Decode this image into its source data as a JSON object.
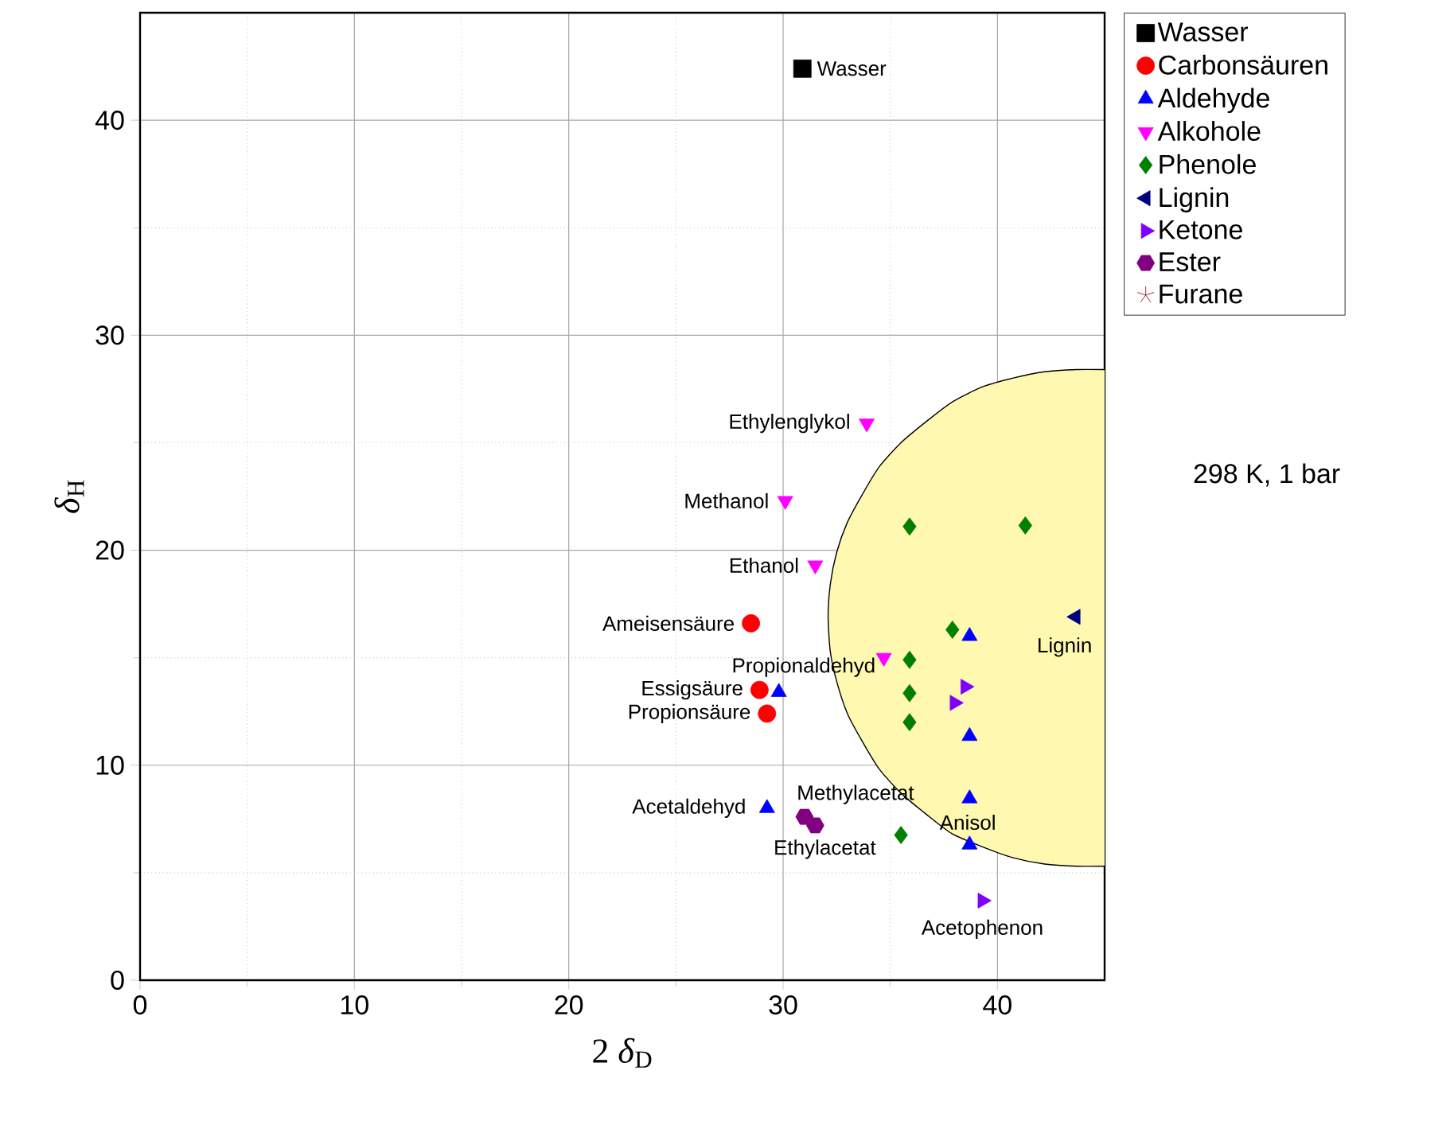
{
  "chart_data": {
    "type": "scatter",
    "xlabel": "2 *δ*$_{D}$",
    "ylabel": "*δ*$_{H}$",
    "xlim": [
      0,
      45
    ],
    "ylim": [
      0,
      45
    ],
    "xticks": [
      0,
      10,
      20,
      30,
      40
    ],
    "yticks": [
      0,
      10,
      20,
      30,
      40
    ],
    "grid": true,
    "legend": "right",
    "series": [
      {
        "type": "area",
        "color": "#fff8b0",
        "x": [
          45.0,
          43.7,
          42.2,
          40.7,
          39.3,
          37.9,
          36.7,
          35.5,
          34.5,
          33.7,
          33.0,
          32.5,
          32.2,
          32.1,
          32.2,
          32.5,
          33.0,
          33.7,
          34.5,
          35.5,
          36.7,
          37.9,
          39.3,
          40.7,
          42.2,
          43.7,
          45.0
        ],
        "values": [
          28.4,
          28.4,
          28.3,
          28.0,
          27.6,
          26.9,
          26.0,
          25.0,
          23.9,
          22.6,
          21.3,
          19.9,
          18.4,
          16.9,
          15.3,
          13.9,
          12.4,
          11.1,
          9.8,
          8.7,
          7.7,
          6.8,
          6.2,
          5.7,
          5.4,
          5.3,
          5.3
        ]
      },
      {
        "name": "Wasser",
        "color": "#000000",
        "marker": "square",
        "x": [
          30.9
        ],
        "values": [
          42.4
        ]
      },
      {
        "name": "Carbonsäuren",
        "color": "#ff0000",
        "marker": "circle",
        "x": [
          28.5,
          28.9,
          29.25
        ],
        "values": [
          16.6,
          13.5,
          12.4
        ]
      },
      {
        "name": "Aldehyde",
        "color": "#0000ff",
        "marker": "triangle",
        "x": [
          29.8,
          29.25,
          38.7,
          38.7,
          38.7,
          38.7
        ],
        "values": [
          13.4,
          8.0,
          16.0,
          11.35,
          8.45,
          6.3
        ]
      },
      {
        "name": "Alkohole",
        "color": "#ff00ff",
        "marker": "triangle_down",
        "x": [
          33.9,
          30.1,
          31.5,
          34.7
        ],
        "values": [
          25.9,
          22.3,
          19.3,
          15.0
        ]
      },
      {
        "name": "Phenole",
        "color": "#008000",
        "marker": "diamond",
        "x": [
          35.9,
          41.3,
          37.9,
          35.9,
          35.9,
          35.9,
          35.5
        ],
        "values": [
          21.1,
          21.15,
          16.3,
          14.9,
          13.35,
          12.0,
          6.75
        ]
      },
      {
        "name": "Lignin",
        "color": "#000080",
        "marker": "triangle_left",
        "x": [
          43.65
        ],
        "values": [
          16.9
        ]
      },
      {
        "name": "Ketone",
        "color": "#8000ff",
        "marker": "triangle_right",
        "x": [
          38.5,
          38.0,
          39.3
        ],
        "values": [
          13.65,
          12.9,
          3.7
        ]
      },
      {
        "name": "Ester",
        "color": "#800080",
        "x": [
          31.0,
          31.5
        ],
        "values": [
          7.6,
          7.2
        ]
      },
      {
        "name": "Furane",
        "color": "#800000",
        "marker": "star"
      }
    ],
    "annotations": [
      "298 K, 1 bar",
      {
        "text": "Wasser",
        "x": 30.9,
        "y": 42.4
      },
      {
        "text": "Ethylenglykol",
        "x": 33.9,
        "y": 25.9
      },
      {
        "text": "Methanol",
        "x": 30.1,
        "y": 22.3
      },
      {
        "text": "Ethanol",
        "x": 31.5,
        "y": 19.3
      },
      {
        "text": "Ameisensäure",
        "x": 28.5,
        "y": 16.6
      },
      {
        "text": "Propionaldehyd",
        "x": 34.7,
        "y": 15.0
      },
      {
        "text": "Essigsäure",
        "x": 28.9,
        "y": 13.5
      },
      {
        "text": "Propionsäure",
        "x": 29.25,
        "y": 12.4
      },
      {
        "text": "Acetaldehyd",
        "x": 29.25,
        "y": 8.0
      },
      {
        "text": "Methylacetat",
        "x": 31.0,
        "y": 7.6
      },
      {
        "text": "Ethylacetat",
        "x": 31.5,
        "y": 7.2
      },
      {
        "text": "Anisol",
        "x": 35.5,
        "y": 6.75
      },
      {
        "text": "Lignin",
        "x": 43.65,
        "y": 16.9
      },
      {
        "text": "Acetophenon",
        "x": 39.3,
        "y": 3.7
      }
    ]
  }
}
